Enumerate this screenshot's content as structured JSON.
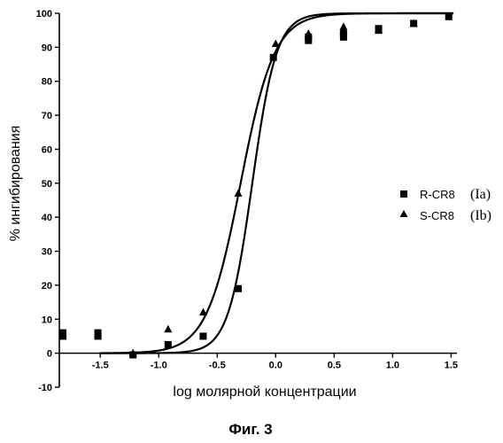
{
  "chart_data": {
    "type": "scatter",
    "title": "",
    "xlabel": "log молярной концентрации",
    "ylabel": "% ингибирования",
    "xlim": [
      -1.85,
      1.55
    ],
    "ylim": [
      -10,
      100
    ],
    "x_ticks": [
      -1.5,
      -1.0,
      -0.5,
      0.0,
      0.5,
      1.0,
      1.5
    ],
    "x_tick_labels": [
      "-1.5",
      "-1.0",
      "-0.5",
      "0.0",
      "0.5",
      "1.0",
      "1.5"
    ],
    "y_ticks": [
      -10,
      0,
      10,
      20,
      30,
      40,
      50,
      60,
      70,
      80,
      90,
      100
    ],
    "y_tick_labels": [
      "-10",
      "0",
      "10",
      "20",
      "30",
      "40",
      "50",
      "60",
      "70",
      "80",
      "90",
      "100"
    ],
    "grid": false,
    "legend_position": "right",
    "series": [
      {
        "name": "R-CR8",
        "id": "(Ia)",
        "marker": "square",
        "points": [
          {
            "x": -1.82,
            "y": 5
          },
          {
            "x": -1.82,
            "y": 6
          },
          {
            "x": -1.52,
            "y": 5
          },
          {
            "x": -1.52,
            "y": 6
          },
          {
            "x": -1.22,
            "y": -0.5
          },
          {
            "x": -0.92,
            "y": 2.5
          },
          {
            "x": -0.62,
            "y": 5
          },
          {
            "x": -0.32,
            "y": 19
          },
          {
            "x": -0.02,
            "y": 87
          },
          {
            "x": 0.28,
            "y": 92
          },
          {
            "x": 0.28,
            "y": 93
          },
          {
            "x": 0.58,
            "y": 93
          },
          {
            "x": 0.58,
            "y": 94
          },
          {
            "x": 0.88,
            "y": 95
          },
          {
            "x": 0.88,
            "y": 95.5
          },
          {
            "x": 1.18,
            "y": 97
          },
          {
            "x": 1.48,
            "y": 99
          }
        ],
        "fit": {
          "bottom": 0,
          "top": 100,
          "logEC50": -0.2,
          "hill": 4.2
        }
      },
      {
        "name": "S-CR8",
        "id": "(Ib)",
        "marker": "triangle",
        "points": [
          {
            "x": -1.82,
            "y": 5.5
          },
          {
            "x": -1.52,
            "y": 5.5
          },
          {
            "x": -1.22,
            "y": 0
          },
          {
            "x": -0.92,
            "y": 7
          },
          {
            "x": -0.62,
            "y": 12
          },
          {
            "x": -0.32,
            "y": 47
          },
          {
            "x": 0.0,
            "y": 91
          },
          {
            "x": 0.28,
            "y": 94
          },
          {
            "x": 0.28,
            "y": 93
          },
          {
            "x": 0.58,
            "y": 95
          },
          {
            "x": 0.58,
            "y": 96
          },
          {
            "x": 0.88,
            "y": 95
          },
          {
            "x": 1.18,
            "y": 97
          }
        ],
        "fit": {
          "bottom": 0,
          "top": 100,
          "logEC50": -0.3,
          "hill": 3.0
        }
      }
    ]
  },
  "caption": "Фиг. 3"
}
